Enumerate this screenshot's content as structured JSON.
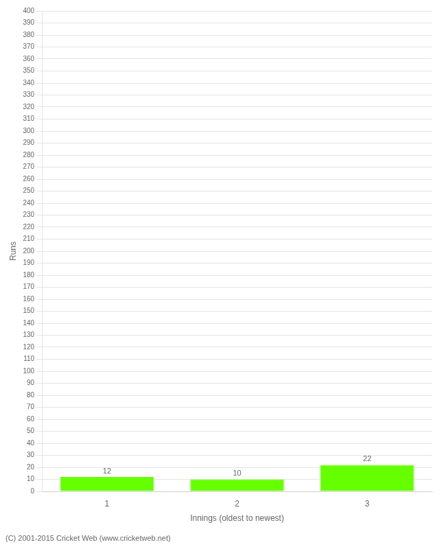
{
  "chart_data": {
    "type": "bar",
    "categories": [
      "1",
      "2",
      "3"
    ],
    "values": [
      12,
      10,
      22
    ],
    "color": "#66ff00",
    "xlabel": "Innings (oldest to newest)",
    "ylabel": "Runs",
    "ylim": [
      0,
      400
    ],
    "yticks": [
      0,
      10,
      20,
      30,
      40,
      50,
      60,
      70,
      80,
      90,
      100,
      110,
      120,
      130,
      140,
      150,
      160,
      170,
      180,
      190,
      200,
      210,
      220,
      230,
      240,
      250,
      260,
      270,
      280,
      290,
      300,
      310,
      320,
      330,
      340,
      350,
      360,
      370,
      380,
      390,
      400
    ],
    "grid": true,
    "data_labels": true,
    "annotations": [
      "(C) 2001-2015 Cricket Web (www.cricketweb.net)"
    ]
  }
}
